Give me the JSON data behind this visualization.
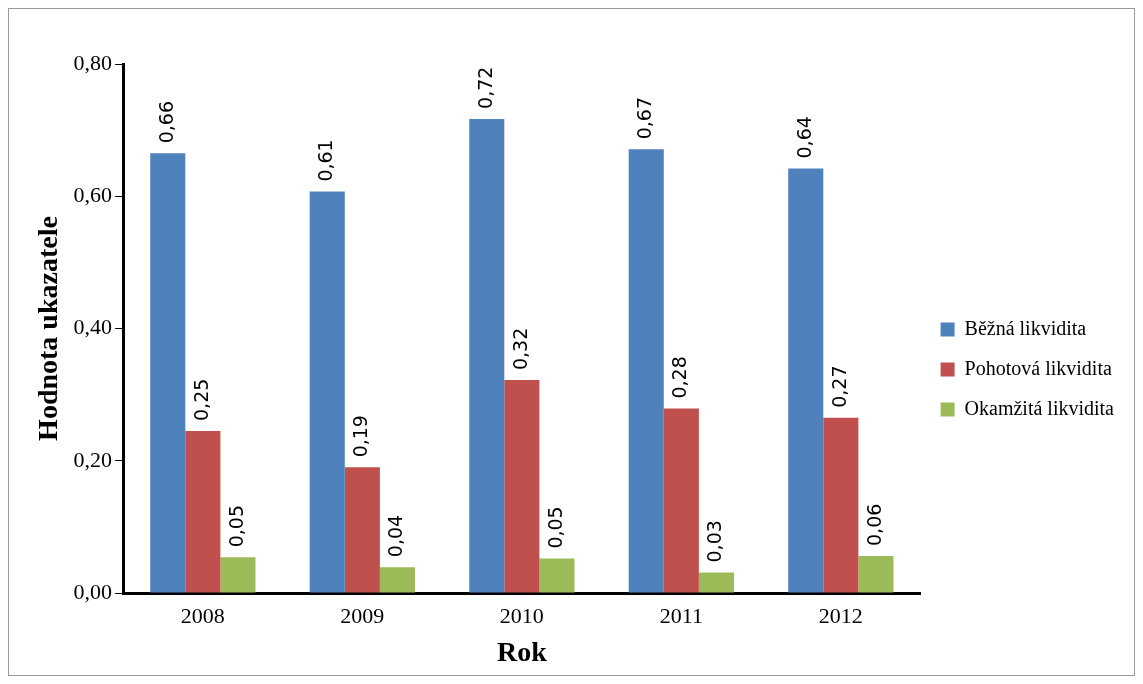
{
  "chart_data": {
    "type": "bar",
    "xlabel": "Rok",
    "ylabel": "Hodnota ukazatele",
    "categories": [
      "2008",
      "2009",
      "2010",
      "2011",
      "2012"
    ],
    "series": [
      {
        "name": "Běžná likvidita",
        "color": "#4f81bd",
        "values": [
          0.665,
          0.607,
          0.717,
          0.671,
          0.642
        ],
        "value_labels": [
          "0,66",
          "0,61",
          "0,72",
          "0,67",
          "0,64"
        ]
      },
      {
        "name": "Pohotová likvidita",
        "color": "#c0504d",
        "values": [
          0.245,
          0.19,
          0.322,
          0.279,
          0.265
        ],
        "value_labels": [
          "0,25",
          "0,19",
          "0,32",
          "0,28",
          "0,27"
        ]
      },
      {
        "name": "Okamžitá likvidita",
        "color": "#9bbb59",
        "values": [
          0.054,
          0.039,
          0.052,
          0.031,
          0.056
        ],
        "value_labels": [
          "0,05",
          "0,04",
          "0,05",
          "0,03",
          "0,06"
        ]
      }
    ],
    "ylim": [
      0,
      0.8
    ],
    "yticks": [
      {
        "value": 0,
        "label": "0,00"
      },
      {
        "value": 0.2,
        "label": "0,20"
      },
      {
        "value": 0.4,
        "label": "0,40"
      },
      {
        "value": 0.6,
        "label": "0,60"
      },
      {
        "value": 0.8,
        "label": "0,80"
      }
    ],
    "grid": false,
    "legend": "right"
  }
}
